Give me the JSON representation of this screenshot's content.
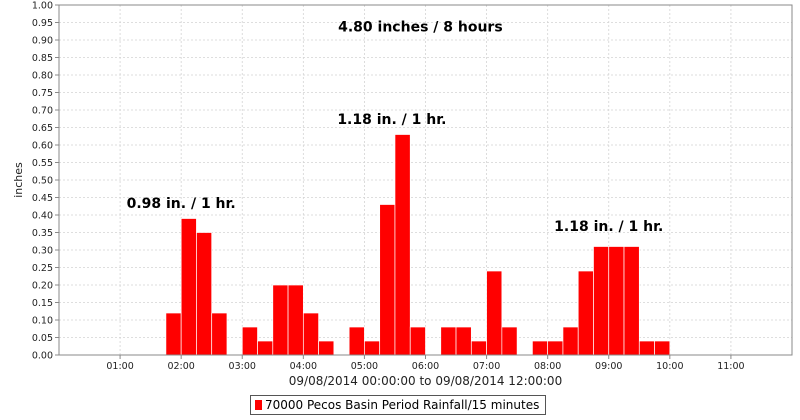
{
  "chart_data": {
    "type": "bar",
    "title": "",
    "xlabel": "09/08/2014 00:00:00 to 09/08/2014 12:00:00",
    "ylabel": "inches",
    "ylim": [
      0,
      1.0
    ],
    "y_ticks": [
      "0.00",
      "0.05",
      "0.10",
      "0.15",
      "0.20",
      "0.25",
      "0.30",
      "0.35",
      "0.40",
      "0.45",
      "0.50",
      "0.55",
      "0.60",
      "0.65",
      "0.70",
      "0.75",
      "0.80",
      "0.85",
      "0.90",
      "0.95",
      "1.00"
    ],
    "x_tick_labels": [
      "01:00",
      "02:00",
      "03:00",
      "04:00",
      "05:00",
      "06:00",
      "07:00",
      "08:00",
      "09:00",
      "10:00",
      "11:00"
    ],
    "x_range_hours": [
      0,
      12
    ],
    "bar_interval_minutes": 15,
    "grid": true,
    "bar_color": "#ff0000",
    "series": [
      {
        "name": "70000 Pecos Basin Period Rainfall/15 minutes",
        "points": [
          {
            "time": "01:45",
            "value": 0.12
          },
          {
            "time": "02:00",
            "value": 0.39
          },
          {
            "time": "02:15",
            "value": 0.35
          },
          {
            "time": "02:30",
            "value": 0.12
          },
          {
            "time": "03:00",
            "value": 0.08
          },
          {
            "time": "03:15",
            "value": 0.04
          },
          {
            "time": "03:30",
            "value": 0.2
          },
          {
            "time": "03:45",
            "value": 0.2
          },
          {
            "time": "04:00",
            "value": 0.12
          },
          {
            "time": "04:15",
            "value": 0.04
          },
          {
            "time": "04:45",
            "value": 0.08
          },
          {
            "time": "05:00",
            "value": 0.04
          },
          {
            "time": "05:15",
            "value": 0.43
          },
          {
            "time": "05:30",
            "value": 0.63
          },
          {
            "time": "05:45",
            "value": 0.08
          },
          {
            "time": "06:15",
            "value": 0.08
          },
          {
            "time": "06:30",
            "value": 0.08
          },
          {
            "time": "06:45",
            "value": 0.04
          },
          {
            "time": "07:00",
            "value": 0.24
          },
          {
            "time": "07:15",
            "value": 0.08
          },
          {
            "time": "07:45",
            "value": 0.04
          },
          {
            "time": "08:00",
            "value": 0.04
          },
          {
            "time": "08:15",
            "value": 0.08
          },
          {
            "time": "08:30",
            "value": 0.24
          },
          {
            "time": "08:45",
            "value": 0.31
          },
          {
            "time": "09:00",
            "value": 0.31
          },
          {
            "time": "09:15",
            "value": 0.31
          },
          {
            "time": "09:30",
            "value": 0.04
          },
          {
            "time": "09:45",
            "value": 0.04
          }
        ]
      }
    ],
    "annotations": [
      {
        "text": "4.80 inches / 8 hours",
        "time": "05:55",
        "value": 0.925
      },
      {
        "text": "1.18 in. / 1 hr.",
        "time": "05:27",
        "value": 0.66
      },
      {
        "text": "0.98 in. / 1 hr.",
        "time": "02:00",
        "value": 0.42
      },
      {
        "text": "1.18 in. / 1 hr.",
        "time": "09:00",
        "value": 0.355
      }
    ]
  }
}
